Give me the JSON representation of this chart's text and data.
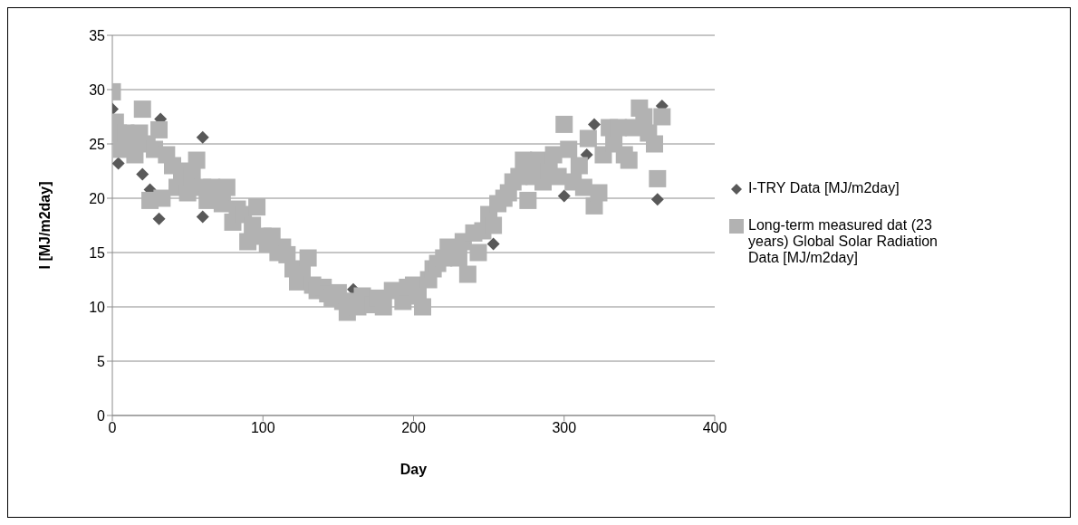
{
  "chart_data": {
    "type": "scatter",
    "xlabel": "Day",
    "ylabel": "I [MJ/m2day]",
    "xlim": [
      0,
      400
    ],
    "xticks": [
      0,
      100,
      200,
      300,
      400
    ],
    "ylim": [
      0,
      35
    ],
    "yticks": [
      0,
      5,
      10,
      15,
      20,
      25,
      30,
      35
    ],
    "grid": "y",
    "legend": "right",
    "series": [
      {
        "name": "I-TRY Data [MJ/m2day]",
        "color": "#595959",
        "marker": "diamond",
        "x": [
          0,
          4,
          20,
          25,
          31,
          32,
          60,
          60,
          160,
          253,
          300,
          315,
          320,
          362,
          365
        ],
        "values": [
          28.2,
          23.2,
          22.2,
          20.8,
          18.1,
          27.3,
          25.6,
          18.3,
          11.6,
          15.8,
          20.2,
          24,
          26.8,
          19.9,
          28.5
        ]
      },
      {
        "name": "Long-term measured dat (23 years) Global Solar Radiation Data [MJ/m2day]",
        "color": "#b2b2b2",
        "marker": "square",
        "x": [
          0,
          2,
          4,
          6,
          9,
          12,
          15,
          18,
          20,
          23,
          25,
          28,
          31,
          33,
          36,
          40,
          43,
          46,
          50,
          53,
          56,
          60,
          63,
          66,
          73,
          76,
          80,
          83,
          87,
          90,
          93,
          96,
          100,
          103,
          106,
          110,
          113,
          116,
          120,
          123,
          126,
          130,
          133,
          136,
          140,
          143,
          146,
          150,
          153,
          156,
          160,
          163,
          166,
          173,
          176,
          180,
          186,
          193,
          196,
          200,
          203,
          206,
          210,
          213,
          216,
          220,
          223,
          230,
          233,
          236,
          240,
          243,
          246,
          250,
          253,
          256,
          260,
          263,
          266,
          270,
          273,
          276,
          280,
          283,
          286,
          290,
          293,
          296,
          300,
          303,
          306,
          310,
          313,
          316,
          320,
          323,
          326,
          330,
          333,
          336,
          340,
          343,
          346,
          350,
          353,
          356,
          360,
          362,
          365
        ],
        "values": [
          29.8,
          27,
          26,
          24.5,
          26,
          25,
          24,
          26,
          28.2,
          25,
          19.8,
          24.5,
          26.3,
          20,
          24,
          23,
          21,
          22.5,
          20.5,
          22,
          23.5,
          21,
          19.8,
          21,
          19.5,
          21,
          17.8,
          19,
          18.5,
          16,
          17.5,
          19.2,
          16.5,
          15.8,
          16.5,
          15,
          15.5,
          14.8,
          13.5,
          12.3,
          13,
          14.5,
          12,
          11.5,
          11.8,
          11.2,
          10.8,
          11.3,
          10.5,
          9.5,
          10.5,
          10,
          11,
          10.2,
          10.8,
          10,
          11.5,
          10.5,
          11.8,
          12,
          11,
          10,
          12.5,
          13.5,
          14,
          14.5,
          15.5,
          14.5,
          16,
          13,
          16.8,
          15,
          17,
          18.5,
          17.5,
          19.5,
          20,
          20.5,
          21.5,
          22,
          23.5,
          19.8,
          22,
          23.5,
          21.5,
          22.5,
          24,
          22,
          26.8,
          24.5,
          21.5,
          23,
          21,
          25.5,
          19.3,
          20.5,
          24,
          26.5,
          25,
          26.5,
          24,
          23.5,
          26.5,
          28.3,
          27.5,
          26,
          25,
          21.8,
          27.5
        ]
      }
    ]
  }
}
